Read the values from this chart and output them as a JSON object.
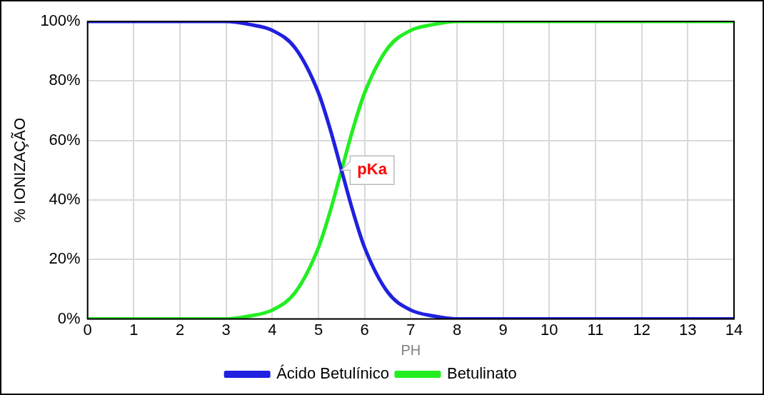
{
  "chart_data": {
    "type": "line",
    "xlabel": "PH",
    "ylabel": "% IONIZAÇÃO",
    "xlim": [
      0,
      14
    ],
    "xticks": [
      0,
      1,
      2,
      3,
      4,
      5,
      6,
      7,
      8,
      9,
      10,
      11,
      12,
      13,
      14
    ],
    "ylim": [
      0,
      100
    ],
    "yticks": [
      {
        "value": 0,
        "label": "0%"
      },
      {
        "value": 20,
        "label": "20%"
      },
      {
        "value": 40,
        "label": "40%"
      },
      {
        "value": 60,
        "label": "60%"
      },
      {
        "value": 80,
        "label": "80%"
      },
      {
        "value": 100,
        "label": "100%"
      }
    ],
    "x": [
      0,
      1,
      2,
      3,
      3.5,
      4,
      4.5,
      5,
      5.25,
      5.5,
      5.75,
      6,
      6.5,
      7,
      7.5,
      8,
      9,
      10,
      11,
      12,
      13,
      14
    ],
    "series": [
      {
        "name": "Ácido Betulínico",
        "color": "#2020e0",
        "values": [
          100,
          100,
          100,
          100,
          99,
          97,
          91,
          76,
          64,
          50,
          36,
          24,
          9,
          3,
          1,
          0,
          0,
          0,
          0,
          0,
          0,
          0
        ]
      },
      {
        "name": "Betulinato",
        "color": "#22ee22",
        "values": [
          0,
          0,
          0,
          0,
          1,
          3,
          9,
          24,
          36,
          50,
          64,
          76,
          91,
          97,
          99,
          100,
          100,
          100,
          100,
          100,
          100,
          100
        ]
      }
    ],
    "annotations": [
      {
        "text": "pKa",
        "x": 5.5,
        "y": 50
      }
    ],
    "grid": true,
    "legend": "bottom",
    "marker": "none",
    "line_style": "solid"
  }
}
